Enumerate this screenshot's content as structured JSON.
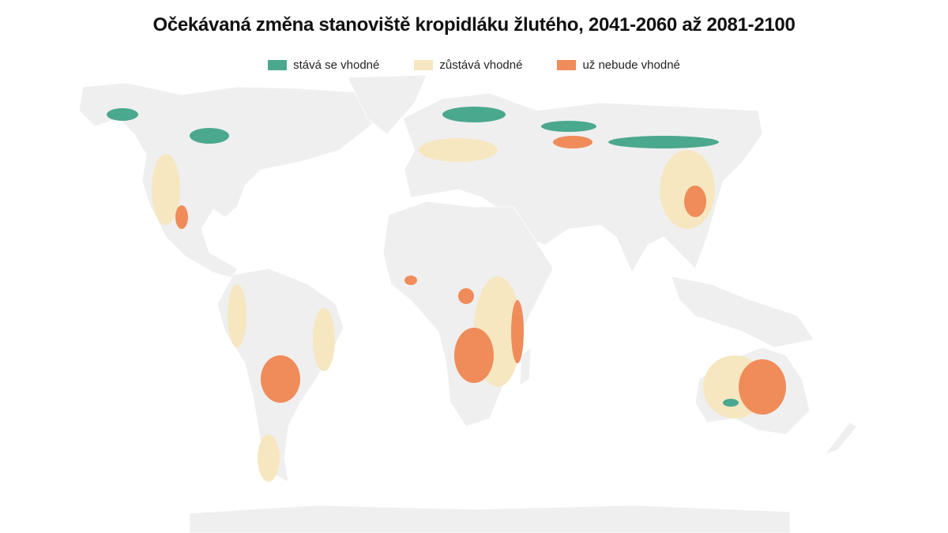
{
  "title": "Očekávaná změna stanoviště kropidláku žlutého, 2041-2060 až 2081-2100",
  "legend": [
    {
      "label": "stává se vhodné",
      "color": "#4aa88f"
    },
    {
      "label": "zůstává vhodné",
      "color": "#f6e7c1"
    },
    {
      "label": "už nebude vhodné",
      "color": "#ef8c5a"
    }
  ]
}
